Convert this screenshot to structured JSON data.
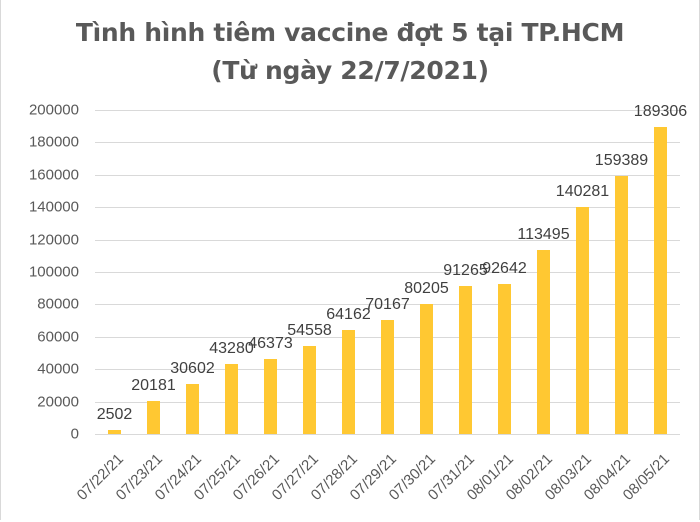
{
  "chart_data": {
    "type": "bar",
    "title": "Tình hình tiêm vaccine đợt 5 tại TP.HCM",
    "subtitle": "(Từ ngày 22/7/2021)",
    "xlabel": "",
    "ylabel": "",
    "ylim": [
      0,
      200000
    ],
    "yticks": [
      "0",
      "20000",
      "40000",
      "60000",
      "80000",
      "100000",
      "120000",
      "140000",
      "160000",
      "180000",
      "200000"
    ],
    "grid": true,
    "legend": "none",
    "bar_color": "#ffc832",
    "categories": [
      "07/22/21",
      "07/23/21",
      "07/24/21",
      "07/25/21",
      "07/26/21",
      "07/27/21",
      "07/28/21",
      "07/29/21",
      "07/30/21",
      "07/31/21",
      "08/01/21",
      "08/02/21",
      "08/03/21",
      "08/04/21",
      "08/05/21"
    ],
    "values": [
      2502,
      20181,
      30602,
      43280,
      46373,
      54558,
      64162,
      70167,
      80205,
      91265,
      92642,
      113495,
      140281,
      159389,
      189306
    ]
  }
}
